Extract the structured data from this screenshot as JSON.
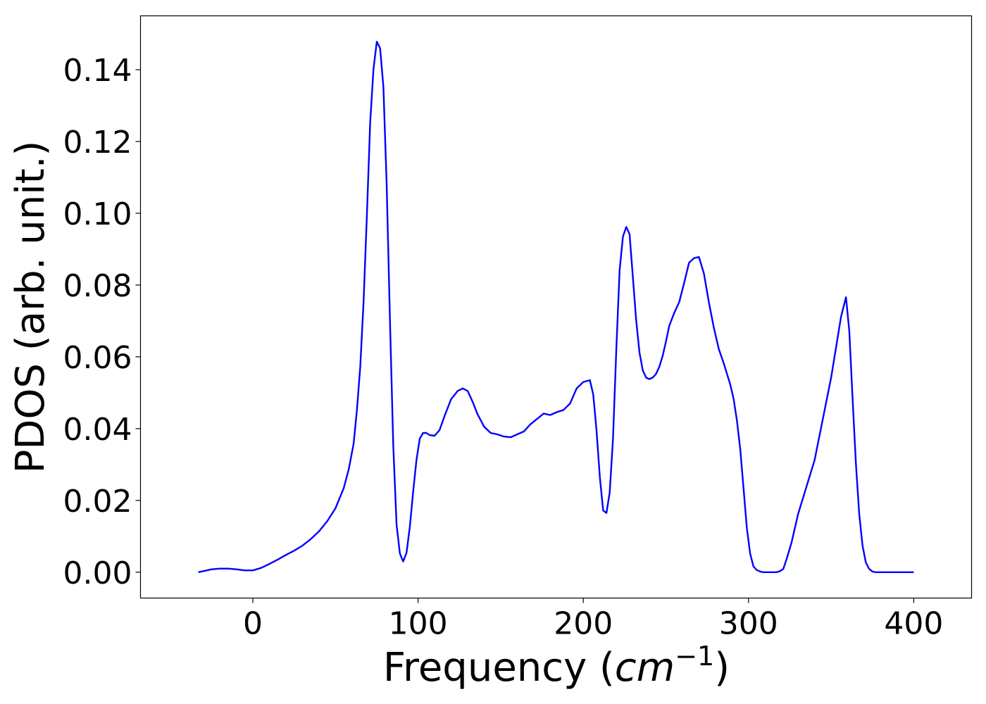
{
  "chart_data": {
    "type": "line",
    "title": "",
    "xlabel": "Frequency (",
    "xlabel_math": "cm",
    "xlabel_sup": "−1",
    "xlabel_end": ")",
    "ylabel": "PDOS (arb. unit.)",
    "xlim": [
      -68,
      435
    ],
    "ylim": [
      -0.0072,
      0.155
    ],
    "xticks": [
      0,
      100,
      200,
      300,
      400
    ],
    "xtick_labels": [
      "0",
      "100",
      "200",
      "300",
      "400"
    ],
    "yticks": [
      0.0,
      0.02,
      0.04,
      0.06,
      0.08,
      0.1,
      0.12,
      0.14
    ],
    "ytick_labels": [
      "0.00",
      "0.02",
      "0.04",
      "0.06",
      "0.08",
      "0.10",
      "0.12",
      "0.14"
    ],
    "grid": false,
    "legend": "none",
    "series": [
      {
        "color": "#0000ff",
        "x": [
          -33,
          -30,
          -25,
          -20,
          -15,
          -10,
          -5,
          0,
          5,
          10,
          15,
          20,
          25,
          30,
          35,
          40,
          45,
          50,
          55,
          58,
          61,
          63,
          65,
          67,
          69,
          71,
          73,
          75,
          77,
          79,
          81,
          83,
          85,
          87,
          89,
          91,
          93,
          95,
          97,
          99,
          101,
          103,
          105,
          107,
          110,
          113,
          116,
          120,
          124,
          127,
          130,
          133,
          136,
          140,
          144,
          148,
          152,
          156,
          160,
          164,
          168,
          172,
          176,
          180,
          184,
          188,
          192,
          196,
          200,
          204,
          206,
          208,
          210,
          212,
          214,
          216,
          218,
          220,
          222,
          224,
          226,
          228,
          230,
          232,
          234,
          236,
          238,
          240,
          242,
          244,
          246,
          248,
          250,
          252,
          255,
          258,
          261,
          264,
          267,
          270,
          273,
          276,
          279,
          282,
          285,
          287,
          289,
          291,
          293,
          295,
          297,
          299,
          301,
          303,
          305,
          307,
          309,
          311,
          313,
          315,
          317,
          319,
          321,
          323,
          326,
          330,
          340,
          350,
          356,
          359,
          361,
          363,
          365,
          367,
          369,
          371,
          373,
          375,
          377,
          379,
          381,
          383,
          385,
          387,
          389,
          391,
          393,
          395,
          397,
          400
        ],
        "y": [
          0.0,
          0.0003,
          0.0008,
          0.001,
          0.001,
          0.0008,
          0.0005,
          0.0005,
          0.0012,
          0.0023,
          0.0035,
          0.0048,
          0.006,
          0.0074,
          0.0092,
          0.0114,
          0.0142,
          0.0178,
          0.0234,
          0.0286,
          0.0358,
          0.0452,
          0.0572,
          0.0752,
          0.0992,
          0.1252,
          0.1402,
          0.1478,
          0.146,
          0.1352,
          0.1082,
          0.0702,
          0.0352,
          0.0132,
          0.0052,
          0.003,
          0.0054,
          0.0126,
          0.0224,
          0.0312,
          0.0372,
          0.0388,
          0.0388,
          0.0382,
          0.038,
          0.0396,
          0.0435,
          0.0482,
          0.0505,
          0.0512,
          0.0505,
          0.0475,
          0.044,
          0.0405,
          0.0388,
          0.0384,
          0.0378,
          0.0376,
          0.0384,
          0.0392,
          0.0412,
          0.0427,
          0.0442,
          0.0438,
          0.0446,
          0.0452,
          0.047,
          0.0512,
          0.053,
          0.0535,
          0.0495,
          0.0395,
          0.0265,
          0.0172,
          0.0165,
          0.0222,
          0.0372,
          0.0622,
          0.0842,
          0.0935,
          0.0962,
          0.0942,
          0.0822,
          0.0702,
          0.0612,
          0.0562,
          0.0542,
          0.0538,
          0.0542,
          0.0552,
          0.0572,
          0.0602,
          0.0642,
          0.0686,
          0.0722,
          0.0752,
          0.0805,
          0.0862,
          0.0875,
          0.0878,
          0.0832,
          0.0752,
          0.0682,
          0.0622,
          0.0582,
          0.0552,
          0.0522,
          0.0482,
          0.0422,
          0.0342,
          0.0232,
          0.0122,
          0.0052,
          0.0016,
          0.0006,
          0.0002,
          0.0,
          0.0,
          0.0,
          0.0,
          0.0,
          0.0003,
          0.0009,
          0.0036,
          0.0082,
          0.0162,
          0.0312,
          0.0542,
          0.0712,
          0.0766,
          0.0672,
          0.0482,
          0.0302,
          0.0162,
          0.0074,
          0.0027,
          0.0009,
          0.0002,
          0.0,
          0.0,
          0.0,
          0.0,
          0.0,
          0.0,
          0.0,
          0.0,
          0.0,
          0.0,
          0.0,
          0.0
        ]
      }
    ]
  }
}
